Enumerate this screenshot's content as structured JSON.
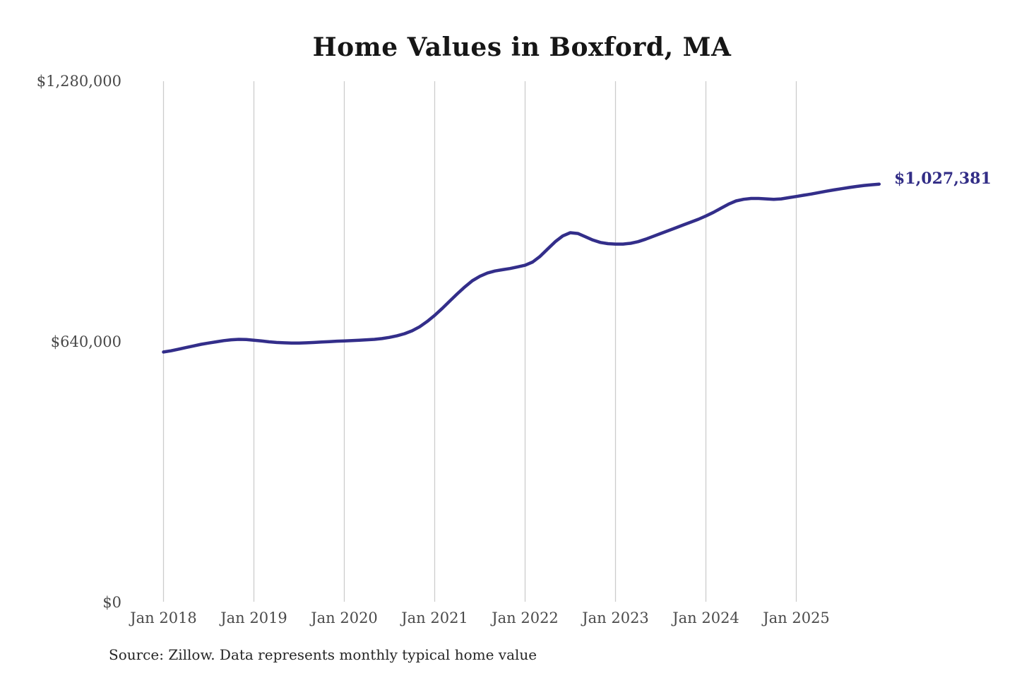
{
  "chart_data": {
    "type": "line",
    "title": "Home Values in Boxford, MA",
    "source_note": "Source: Zillow. Data represents monthly typical home value",
    "end_label": "$1,027,381",
    "end_value": 1027381,
    "xlabel": "",
    "ylabel": "",
    "ylim": [
      0,
      1280000
    ],
    "grid": "vertical-only",
    "legend": "none",
    "y_ticks": [
      {
        "label": "$0",
        "value": 0
      },
      {
        "label": "$640,000",
        "value": 640000
      },
      {
        "label": "$1,280,000",
        "value": 1280000
      }
    ],
    "x_ticks": [
      "Jan 2018",
      "Jan 2019",
      "Jan 2020",
      "Jan 2021",
      "Jan 2022",
      "Jan 2023",
      "Jan 2024",
      "Jan 2025"
    ],
    "series": [
      {
        "name": "Monthly typical home value",
        "start_month": "Jan 2018",
        "frequency": "monthly",
        "values": [
          615000,
          618000,
          622000,
          626000,
          630000,
          634000,
          637000,
          640000,
          643000,
          645000,
          646000,
          645500,
          644000,
          642000,
          640000,
          638500,
          637500,
          637000,
          637000,
          637500,
          638500,
          639500,
          640500,
          641500,
          642000,
          643000,
          644000,
          645000,
          646000,
          648000,
          651000,
          655000,
          660000,
          667000,
          677000,
          690000,
          705000,
          722000,
          740000,
          758000,
          775000,
          790000,
          801000,
          809000,
          814000,
          817000,
          820000,
          824000,
          828000,
          836000,
          850000,
          868000,
          886000,
          900000,
          908000,
          906000,
          898000,
          890000,
          884000,
          881000,
          880000,
          880000,
          882000,
          886000,
          892000,
          899000,
          906000,
          913000,
          920000,
          927000,
          934000,
          941000,
          949000,
          958000,
          968000,
          978000,
          986000,
          990000,
          992000,
          992000,
          991000,
          990000,
          991000,
          994000,
          997000,
          1000000,
          1003000,
          1006500,
          1010000,
          1013000,
          1016000,
          1019000,
          1021500,
          1024000,
          1025800,
          1027381
        ]
      }
    ],
    "colors": {
      "line": "#332e8a",
      "end_label": "#322d86",
      "grid": "#cccccc",
      "tick_text": "#4a4a4a",
      "title_text": "#161616"
    }
  }
}
